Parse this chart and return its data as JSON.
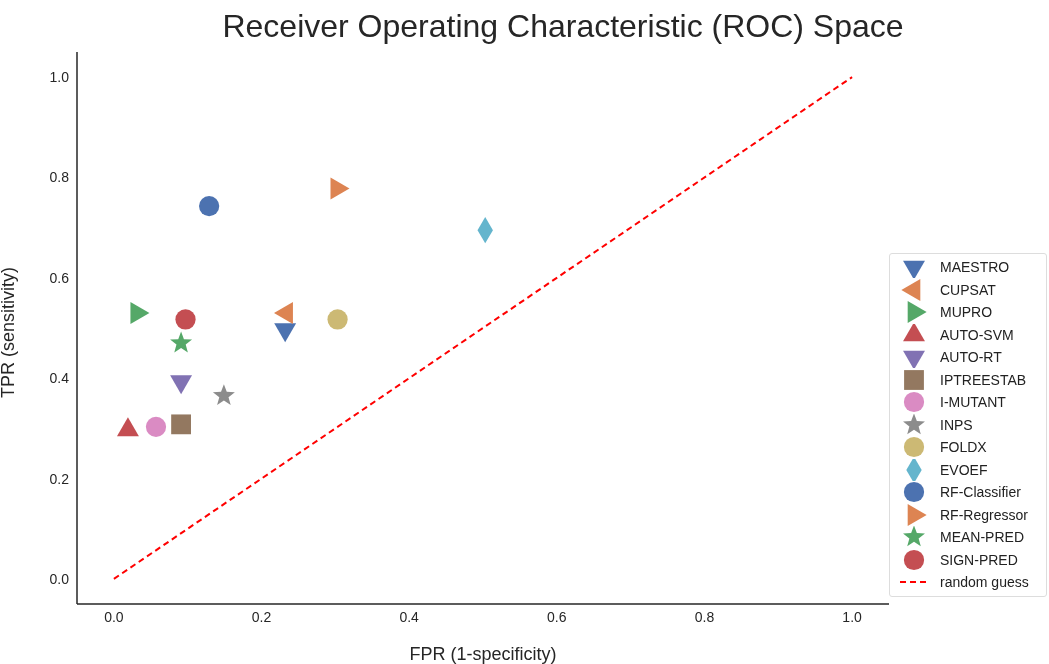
{
  "chart_data": {
    "type": "scatter",
    "title": "Receiver Operating Characteristic (ROC) Space",
    "xlabel": "FPR (1-specificity)",
    "ylabel": "TPR (sensitivity)",
    "xlim": [
      -0.05,
      1.05
    ],
    "ylim": [
      -0.05,
      1.05
    ],
    "xticks": [
      {
        "value": 0,
        "label": "0.0"
      },
      0.2,
      0.4,
      0.6,
      0.8,
      {
        "value": 1,
        "label": "1.0"
      }
    ],
    "yticks": [
      {
        "value": 0,
        "label": "0.0"
      },
      0.2,
      0.4,
      0.6,
      0.8,
      {
        "value": 1,
        "label": "1.0"
      }
    ],
    "grid": false,
    "legend": "right",
    "series": [
      {
        "name": "MAESTRO",
        "color": "#4c72b0",
        "marker": "triangle-down",
        "x": [
          0.232
        ],
        "values": [
          0.497
        ]
      },
      {
        "name": "CUPSAT",
        "color": "#dd8452",
        "marker": "triangle-left",
        "x": [
          0.234
        ],
        "values": [
          0.53
        ]
      },
      {
        "name": "MUPRO",
        "color": "#55a868",
        "marker": "triangle-right",
        "x": [
          0.031
        ],
        "values": [
          0.53
        ]
      },
      {
        "name": "AUTO-SVM",
        "color": "#c44e52",
        "marker": "triangle",
        "x": [
          0.019
        ],
        "values": [
          0.297
        ]
      },
      {
        "name": "AUTO-RT",
        "color": "#8172b3",
        "marker": "triangle-down",
        "x": [
          0.091
        ],
        "values": [
          0.393
        ]
      },
      {
        "name": "IPTREESTAB",
        "color": "#937860",
        "marker": "square",
        "x": [
          0.091
        ],
        "values": [
          0.308
        ]
      },
      {
        "name": "I-MUTANT",
        "color": "#da8bc3",
        "x": [
          0.057
        ],
        "values": [
          0.303
        ]
      },
      {
        "name": "INPS",
        "color": "#8c8c8c",
        "marker": "star",
        "x": [
          0.149
        ],
        "values": [
          0.365
        ]
      },
      {
        "name": "FOLDX",
        "color": "#ccb974",
        "x": [
          0.303
        ],
        "values": [
          0.517
        ]
      },
      {
        "name": "EVOEF",
        "color": "#64b5cd",
        "marker": "diamond",
        "x": [
          0.503
        ],
        "values": [
          0.695
        ]
      },
      {
        "name": "RF-Classifier",
        "color": "#4c72b0",
        "x": [
          0.129
        ],
        "values": [
          0.743
        ]
      },
      {
        "name": "RF-Regressor",
        "color": "#dd8452",
        "marker": "triangle-right",
        "x": [
          0.302
        ],
        "values": [
          0.778
        ]
      },
      {
        "name": "MEAN-PRED",
        "color": "#55a868",
        "marker": "star",
        "x": [
          0.091
        ],
        "values": [
          0.47
        ]
      },
      {
        "name": "SIGN-PRED",
        "color": "#c44e52",
        "marker": "circle",
        "x": [
          0.097
        ],
        "values": [
          0.517
        ]
      },
      {
        "name": "random guess",
        "type": "line",
        "color": "#ff0000",
        "line_style": "dashed",
        "marker": "none",
        "x": [
          0,
          1
        ],
        "values": [
          0,
          1
        ]
      }
    ]
  }
}
